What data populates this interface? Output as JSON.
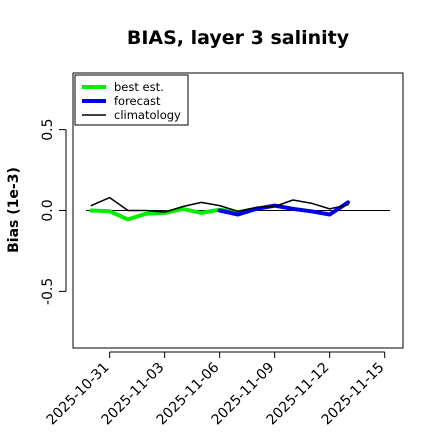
{
  "chart_data": {
    "type": "line",
    "title": "BIAS, layer 3 salinity",
    "xlabel": "",
    "ylabel": "Bias (1e-3)",
    "ylim": [
      -0.85,
      0.85
    ],
    "yticks": [
      -0.5,
      0.0,
      0.5
    ],
    "ytick_labels": [
      "-0.5",
      "0.0",
      "0.5"
    ],
    "xlim": [
      "2025-10-29",
      "2025-11-16"
    ],
    "xticks": [
      {
        "date": "2025-10-31",
        "label": "2025-10-31",
        "color": "#000000"
      },
      {
        "date": "2025-11-03",
        "label": "2025-11-03",
        "color": "#000000"
      },
      {
        "date": "2025-11-06",
        "label": "2025-11-06",
        "color": "#228B22"
      },
      {
        "date": "2025-11-09",
        "label": "2025-11-09",
        "color": "#000000"
      },
      {
        "date": "2025-11-12",
        "label": "2025-11-12",
        "color": "#000000"
      },
      {
        "date": "2025-11-15",
        "label": "2025-11-15",
        "color": "#000000"
      }
    ],
    "zero_line": true,
    "grid": false,
    "legend_position": "top-left",
    "series": [
      {
        "name": "best est.",
        "color": "#00ee00",
        "width": "thick",
        "x": [
          "2025-10-30",
          "2025-10-31",
          "2025-11-01",
          "2025-11-02",
          "2025-11-03",
          "2025-11-04",
          "2025-11-05",
          "2025-11-06",
          "2025-11-07",
          "2025-11-08"
        ],
        "y": [
          0.0,
          -0.005,
          -0.055,
          -0.02,
          -0.015,
          0.01,
          -0.015,
          0.005,
          -0.01,
          0.01
        ]
      },
      {
        "name": "forecast",
        "color": "#0000ee",
        "width": "thick",
        "x": [
          "2025-11-06",
          "2025-11-07",
          "2025-11-08",
          "2025-11-09",
          "2025-11-10",
          "2025-11-11",
          "2025-11-12",
          "2025-11-13"
        ],
        "y": [
          0.0,
          -0.025,
          0.01,
          0.03,
          0.01,
          -0.005,
          -0.025,
          0.05
        ]
      },
      {
        "name": "climatology",
        "color": "#000000",
        "width": "thin",
        "x": [
          "2025-10-30",
          "2025-10-31",
          "2025-11-01",
          "2025-11-02",
          "2025-11-03",
          "2025-11-04",
          "2025-11-05",
          "2025-11-06",
          "2025-11-07",
          "2025-11-08",
          "2025-11-09",
          "2025-11-10",
          "2025-11-11",
          "2025-11-12",
          "2025-11-13"
        ],
        "y": [
          0.03,
          0.08,
          0.0,
          0.0,
          -0.01,
          0.025,
          0.05,
          0.03,
          -0.005,
          0.02,
          0.025,
          0.065,
          0.045,
          0.01,
          0.035
        ]
      }
    ]
  }
}
